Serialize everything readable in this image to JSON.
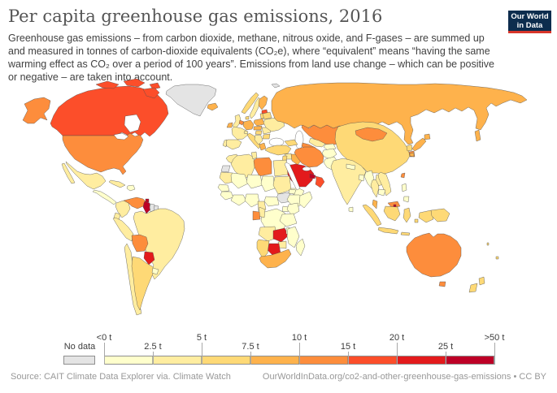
{
  "header": {
    "title": "Per capita greenhouse gas emissions, 2016",
    "subtitle": "Greenhouse gas emissions – from carbon dioxide, methane, nitrous oxide, and F-gases – are summed up and measured in tonnes of carbon-dioxide equivalents (CO₂e), where “equivalent” means “having the same warming effect as CO₂ over a period of 100 years”. Emissions from land use change – which can be positive or negative – are taken into account.",
    "logo": {
      "line1": "Our World",
      "line2": "in Data",
      "bg": "#0d2d4e",
      "stripe": "#d8352a"
    }
  },
  "footer": {
    "source": "Source: CAIT Climate Data Explorer via. Climate Watch",
    "link": "OurWorldInData.org/co2-and-other-greenhouse-gas-emissions • CC BY"
  },
  "chart_data": {
    "type": "choropleth_map",
    "title": "Per capita greenhouse gas emissions",
    "year": 2016,
    "unit": "tonnes of CO₂-equivalents per person",
    "legend": {
      "no_data_label": "No data",
      "no_data_color": "#e4e4e4",
      "bin_colors": [
        "#ffffcc",
        "#ffeda0",
        "#fed976",
        "#feb24c",
        "#fd8d3c",
        "#fc4e2a",
        "#e31a1c",
        "#bd0026"
      ],
      "ticks": [
        {
          "label": "<0 t",
          "row": "top",
          "pos": 0
        },
        {
          "label": "2.5 t",
          "row": "bottom",
          "pos": 1
        },
        {
          "label": "5 t",
          "row": "top",
          "pos": 2
        },
        {
          "label": "7.5 t",
          "row": "bottom",
          "pos": 3
        },
        {
          "label": "10 t",
          "row": "top",
          "pos": 4
        },
        {
          "label": "15 t",
          "row": "bottom",
          "pos": 5
        },
        {
          "label": "20 t",
          "row": "top",
          "pos": 6
        },
        {
          "label": "25 t",
          "row": "bottom",
          "pos": 7
        },
        {
          "label": ">50 t",
          "row": "top",
          "pos": 8
        }
      ]
    },
    "palette": {
      "b1": "#ffffcc",
      "b2": "#ffeda0",
      "b3": "#fed976",
      "b4": "#feb24c",
      "b5": "#fd8d3c",
      "b6": "#fc4e2a",
      "b7": "#e31a1c",
      "b8": "#bd0026",
      "nd": "#e4e4e4"
    },
    "regions": {
      "canada": "b6",
      "canada-islands-a": "b6",
      "canada-islands-b": "b6",
      "canada-islands-c": "b6",
      "baffin": "b6",
      "alaska": "b5",
      "greenland": "nd",
      "iceland": "b4",
      "svalbard": "nd",
      "usa": "b5",
      "mexico": "b2",
      "baja": "b2",
      "central-america": "b1",
      "cuba": "b2",
      "hispaniola": "b1",
      "trinidad": "b8",
      "colombia": "b2",
      "venezuela": "b5",
      "guyana": "b8",
      "suriname": "nd",
      "french-guiana": "nd",
      "brazil": "b2",
      "ecuador": "b2",
      "peru": "b2",
      "bolivia": "b5",
      "paraguay": "b7",
      "chile": "b2",
      "argentina": "b3",
      "uruguay": "b1",
      "uk": "b2",
      "ireland": "b4",
      "norway": "b3",
      "sweden": "b2",
      "finland": "b4",
      "estonia": "b6",
      "latvia-lithuania": "b3",
      "denmark": "b3",
      "germany": "b4",
      "benelux": "b5",
      "france": "b2",
      "spain": "b2",
      "portugal": "b2",
      "italy": "b3",
      "switzerland": "b2",
      "poland": "b4",
      "czech-slovakia": "b4",
      "hungary": "b3",
      "balkans": "b2",
      "greece": "b4",
      "romania": "b2",
      "bulgaria": "b3",
      "ukraine": "b2",
      "belarus": "b3",
      "russia": "b4",
      "sakhalin": "b4",
      "kazakhstan": "b5",
      "caucasus": "b3",
      "turkey": "b3",
      "syria": "b2",
      "levant": "b3",
      "iraq": "b4",
      "iran": "b5",
      "afghanistan": "b1",
      "pakistan": "b1",
      "turkmenistan": "b5",
      "uzbekistan": "b2",
      "kyrgyzstan-tajikistan": "b1",
      "saudi-arabia": "b7",
      "qatar-uae": "b8",
      "oman": "b6",
      "yemen": "b1",
      "morocco": "b2",
      "western-sahara": "nd",
      "algeria": "b2",
      "tunisia": "b2",
      "libya": "b5",
      "egypt": "b2",
      "mauritania": "b2",
      "mali": "b1",
      "niger": "b1",
      "chad": "b1",
      "sudan": "b2",
      "south-sudan": "nd",
      "eritrea": "b1",
      "ethiopia": "b1",
      "somalia": "b1",
      "senegal": "b1",
      "guinea": "b1",
      "west-africa-coast": "b1",
      "nigeria": "b1",
      "cameroon": "b2",
      "central-african-republic": "b1",
      "drc": "b1",
      "gabon": "b5",
      "congo": "b2",
      "uganda": "b1",
      "kenya": "b1",
      "tanzania": "b1",
      "angola": "b2",
      "zambia": "b7",
      "malawi": "b1",
      "mozambique": "b1",
      "zimbabwe": "b2",
      "botswana": "b7",
      "namibia": "b3",
      "south-africa": "b4",
      "madagascar": "b1",
      "india": "b2",
      "sri-lanka": "b1",
      "nepal": "b1",
      "bangladesh": "b1",
      "myanmar": "b1",
      "thailand": "b2",
      "laos": "b2",
      "vietnam": "b2",
      "cambodia": "b1",
      "malaysia-peninsula": "b4",
      "malaysia-borneo": "b5",
      "brunei": "b8",
      "indonesia-sumatra": "b3",
      "indonesia-java": "b3",
      "indonesia-borneo": "b3",
      "sulawesi": "b3",
      "lesser-sunda": "b3",
      "maluku": "b3",
      "west-papua": "b3",
      "papua-new-guinea": "b3",
      "philippines-luzon": "b1",
      "philippines-mindanao": "b1",
      "taiwan": "b5",
      "china": "b3",
      "mongolia": "b5",
      "north-korea": "b3",
      "south-korea": "b5",
      "japan-hokkaido": "b4",
      "japan-honshu": "b4",
      "japan-kyushu": "b4",
      "australia": "b5",
      "tasmania": "b5",
      "new-zealand-north": "b3",
      "new-zealand-south": "b3",
      "fiji": "b3",
      "vanuatu": "b3"
    }
  }
}
